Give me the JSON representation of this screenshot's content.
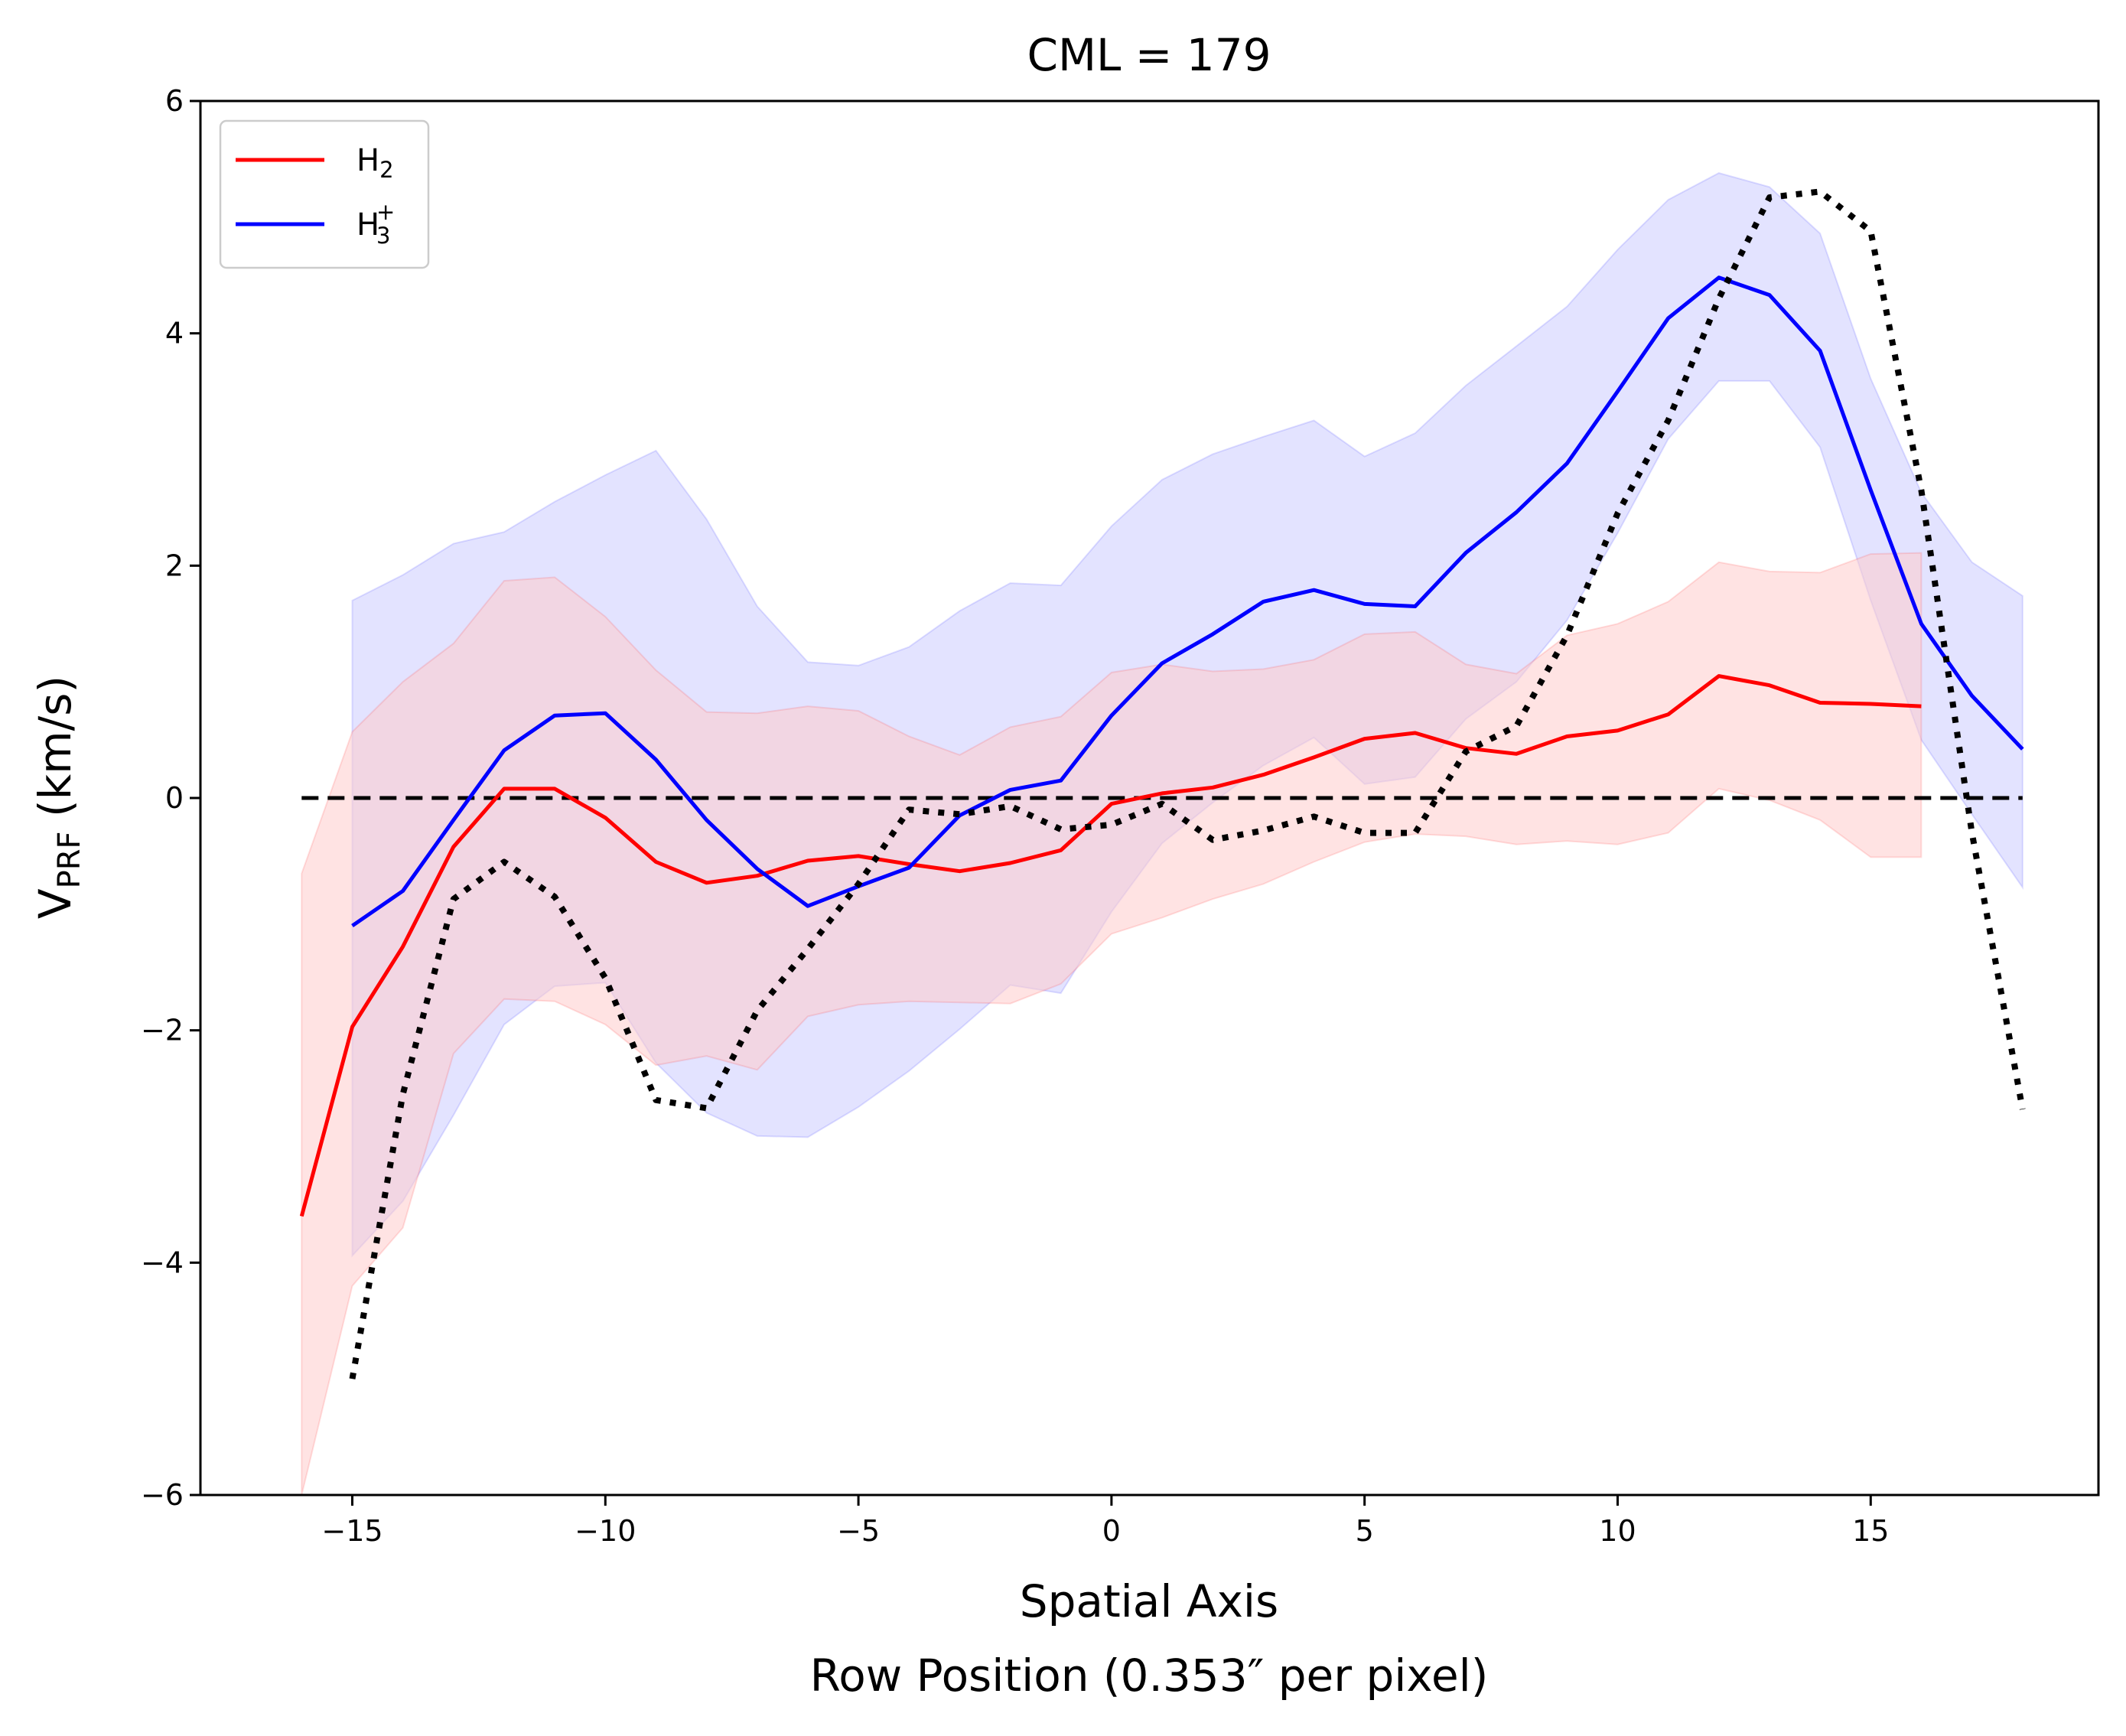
{
  "chart_data": {
    "type": "line",
    "title": "CML = 179",
    "xlabel_line1": "Spatial Axis",
    "xlabel_line2": "Row Position (0.353″ per pixel)",
    "ylabel_main": "V",
    "ylabel_sub": "PRF",
    "ylabel_units": " (km/s)",
    "xlim": [
      -18,
      19.5
    ],
    "ylim": [
      -6,
      6
    ],
    "xticks": [
      -15,
      -10,
      -5,
      0,
      5,
      10,
      15
    ],
    "xtick_labels": [
      "−15",
      "−10",
      "−5",
      "0",
      "5",
      "10",
      "15"
    ],
    "yticks": [
      -6,
      -4,
      -2,
      0,
      2,
      4,
      6
    ],
    "ytick_labels": [
      "−6",
      "−4",
      "−2",
      "0",
      "2",
      "4",
      "6"
    ],
    "grid": false,
    "legend_position": "top-left",
    "colors": {
      "h2": "#ff0000",
      "h3": "#0000ff",
      "h2_band": "#ffcccc",
      "h3_band": "#ccccff",
      "reference": "#000000"
    },
    "series": [
      {
        "name": "H2",
        "legend_base": "H",
        "legend_sub": "2",
        "legend_sup": "",
        "color": "#ff0000",
        "x": [
          -16,
          -15,
          -14,
          -13,
          -12,
          -11,
          -10,
          -9,
          -8,
          -7,
          -6,
          -5,
          -4,
          -3,
          -2,
          -1,
          0,
          1,
          2,
          3,
          4,
          5,
          6,
          7,
          8,
          9,
          10,
          11,
          12,
          13,
          14,
          15,
          16
        ],
        "y": [
          -3.6,
          -1.97,
          -1.28,
          -0.42,
          0.08,
          0.08,
          -0.17,
          -0.55,
          -0.73,
          -0.67,
          -0.54,
          -0.5,
          -0.57,
          -0.63,
          -0.56,
          -0.45,
          -0.05,
          0.04,
          0.09,
          0.2,
          0.35,
          0.51,
          0.56,
          0.43,
          0.38,
          0.53,
          0.58,
          0.72,
          1.05,
          0.97,
          0.82,
          0.81,
          0.79
        ],
        "band_upper": [
          -0.65,
          0.57,
          1.0,
          1.33,
          1.87,
          1.9,
          1.56,
          1.1,
          0.74,
          0.73,
          0.79,
          0.75,
          0.53,
          0.37,
          0.61,
          0.7,
          1.08,
          1.15,
          1.09,
          1.11,
          1.19,
          1.41,
          1.43,
          1.15,
          1.07,
          1.4,
          1.5,
          1.69,
          2.03,
          1.95,
          1.94,
          2.1,
          2.11
        ],
        "band_lower": [
          -6.0,
          -4.2,
          -3.7,
          -2.2,
          -1.73,
          -1.75,
          -1.95,
          -2.3,
          -2.22,
          -2.34,
          -1.88,
          -1.78,
          -1.75,
          -1.76,
          -1.77,
          -1.6,
          -1.17,
          -1.03,
          -0.87,
          -0.74,
          -0.55,
          -0.38,
          -0.31,
          -0.33,
          -0.4,
          -0.37,
          -0.4,
          -0.3,
          0.08,
          -0.02,
          -0.19,
          -0.51,
          -0.51
        ]
      },
      {
        "name": "H3+",
        "legend_base": "H",
        "legend_sub": "3",
        "legend_sup": "+",
        "color": "#0000ff",
        "x": [
          -15,
          -14,
          -13,
          -12,
          -11,
          -10,
          -9,
          -8,
          -7,
          -6,
          -5,
          -4,
          -3,
          -2,
          -1,
          0,
          1,
          2,
          3,
          4,
          5,
          6,
          7,
          8,
          9,
          10,
          11,
          12,
          13,
          14,
          15,
          16,
          17,
          18
        ],
        "y": [
          -1.1,
          -0.8,
          -0.19,
          0.41,
          0.71,
          0.73,
          0.33,
          -0.19,
          -0.61,
          -0.93,
          -0.76,
          -0.6,
          -0.15,
          0.07,
          0.15,
          0.71,
          1.16,
          1.41,
          1.69,
          1.79,
          1.67,
          1.65,
          2.11,
          2.46,
          2.88,
          3.5,
          4.13,
          4.48,
          4.33,
          3.85,
          2.65,
          1.5,
          0.88,
          0.42
        ],
        "band_upper": [
          1.7,
          1.92,
          2.19,
          2.29,
          2.55,
          2.78,
          2.99,
          2.4,
          1.65,
          1.17,
          1.14,
          1.3,
          1.61,
          1.85,
          1.83,
          2.34,
          2.74,
          2.96,
          3.11,
          3.25,
          2.94,
          3.14,
          3.55,
          3.89,
          4.23,
          4.72,
          5.15,
          5.38,
          5.26,
          4.86,
          3.61,
          2.63,
          2.03,
          1.74
        ],
        "band_lower": [
          -3.94,
          -3.47,
          -2.73,
          -1.95,
          -1.62,
          -1.59,
          -2.28,
          -2.71,
          -2.91,
          -2.92,
          -2.66,
          -2.35,
          -1.99,
          -1.61,
          -1.68,
          -0.98,
          -0.39,
          -0.04,
          0.28,
          0.52,
          0.12,
          0.18,
          0.68,
          1.0,
          1.53,
          2.28,
          3.09,
          3.59,
          3.59,
          3.02,
          1.7,
          0.5,
          -0.14,
          -0.77
        ]
      },
      {
        "name": "",
        "style": "dotted",
        "color": "#000000",
        "x": [
          -15,
          -14,
          -13,
          -12,
          -11,
          -10,
          -9,
          -8,
          -7,
          -6,
          -5,
          -4,
          -3,
          -2,
          -1,
          0,
          1,
          2,
          3,
          4,
          5,
          6,
          7,
          8,
          9,
          10,
          11,
          12,
          13,
          14,
          15,
          16,
          17,
          18
        ],
        "y": [
          -5.0,
          -2.55,
          -0.87,
          -0.55,
          -0.85,
          -1.55,
          -2.6,
          -2.67,
          -1.83,
          -1.3,
          -0.74,
          -0.1,
          -0.14,
          -0.07,
          -0.27,
          -0.23,
          -0.05,
          -0.36,
          -0.28,
          -0.16,
          -0.3,
          -0.3,
          0.4,
          0.62,
          1.4,
          2.45,
          3.25,
          4.3,
          5.17,
          5.22,
          4.88,
          2.65,
          -0.3,
          -2.68
        ]
      },
      {
        "name": "",
        "style": "dashed",
        "color": "#000000",
        "x": [
          -16,
          18
        ],
        "y": [
          0,
          0
        ]
      }
    ]
  }
}
